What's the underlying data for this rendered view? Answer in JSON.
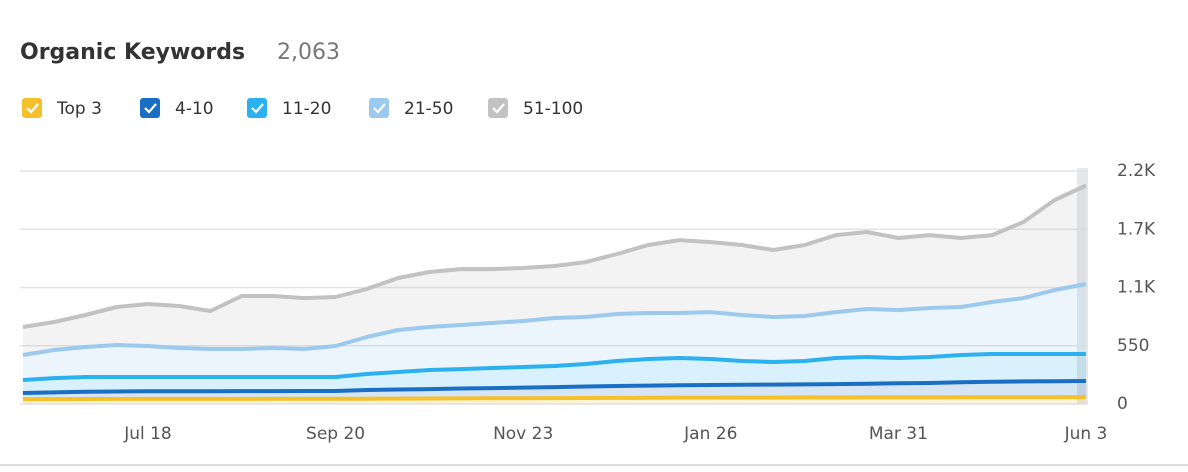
{
  "chart_data": {
    "type": "stacked-area",
    "title": "Organic Keywords",
    "subtitle": "2,063",
    "categories": [
      null,
      null,
      null,
      null,
      "Jul 18",
      null,
      null,
      null,
      null,
      null,
      "Sep 20",
      null,
      null,
      null,
      null,
      null,
      "Nov 23",
      null,
      null,
      null,
      null,
      null,
      "Jan 26",
      null,
      null,
      null,
      null,
      null,
      "Mar 31",
      null,
      null,
      null,
      null,
      null,
      "Jun 3"
    ],
    "series": [
      {
        "name": "Top 3",
        "color": "#f5c02a",
        "values": [
          45,
          46,
          47,
          48,
          48,
          48,
          48,
          48,
          49,
          49,
          49,
          50,
          51,
          52,
          53,
          54,
          55,
          56,
          57,
          58,
          59,
          60,
          60,
          60,
          60,
          61,
          61,
          62,
          62,
          62,
          63,
          63,
          64,
          64,
          65
        ]
      },
      {
        "name": "4-10",
        "color": "#1a6fc4",
        "values": [
          59,
          64,
          68,
          70,
          72,
          72,
          73,
          74,
          73,
          74,
          74,
          82,
          86,
          89,
          93,
          96,
          100,
          104,
          108,
          112,
          115,
          117,
          119,
          121,
          123,
          124,
          127,
          130,
          133,
          136,
          142,
          147,
          149,
          151,
          152
        ]
      },
      {
        "name": "11-20",
        "color": "#2bb0f0",
        "values": [
          123,
          135,
          140,
          137,
          135,
          135,
          134,
          133,
          133,
          132,
          132,
          151,
          165,
          180,
          184,
          190,
          194,
          199,
          213,
          236,
          251,
          257,
          246,
          225,
          214,
          221,
          246,
          252,
          239,
          246,
          258,
          262,
          259,
          257,
          255
        ]
      },
      {
        "name": "21-50",
        "color": "#9cc9ee",
        "values": [
          236,
          265,
          283,
          302,
          293,
          274,
          264,
          264,
          274,
          264,
          293,
          350,
          397,
          406,
          416,
          425,
          435,
          453,
          443,
          444,
          434,
          425,
          443,
          434,
          424,
          425,
          434,
          453,
          453,
          462,
          453,
          491,
          528,
          604,
          661
        ]
      },
      {
        "name": "51-100",
        "color": "#c2c2c2",
        "values": [
          264,
          264,
          302,
          359,
          396,
          396,
          359,
          501,
          491,
          481,
          462,
          453,
          491,
          519,
          528,
          509,
          500,
          491,
          519,
          566,
          642,
          689,
          661,
          661,
          633,
          670,
          727,
          727,
          680,
          689,
          651,
          632,
          718,
          850,
          930
        ]
      }
    ],
    "ylim": [
      0,
      2200
    ],
    "yticks": [
      0,
      550,
      {
        "value": 1100,
        "label": "1.1K"
      },
      {
        "value": 1650,
        "label": "1.7K"
      },
      {
        "value": 2200,
        "label": "2.2K"
      }
    ],
    "grid": true
  }
}
